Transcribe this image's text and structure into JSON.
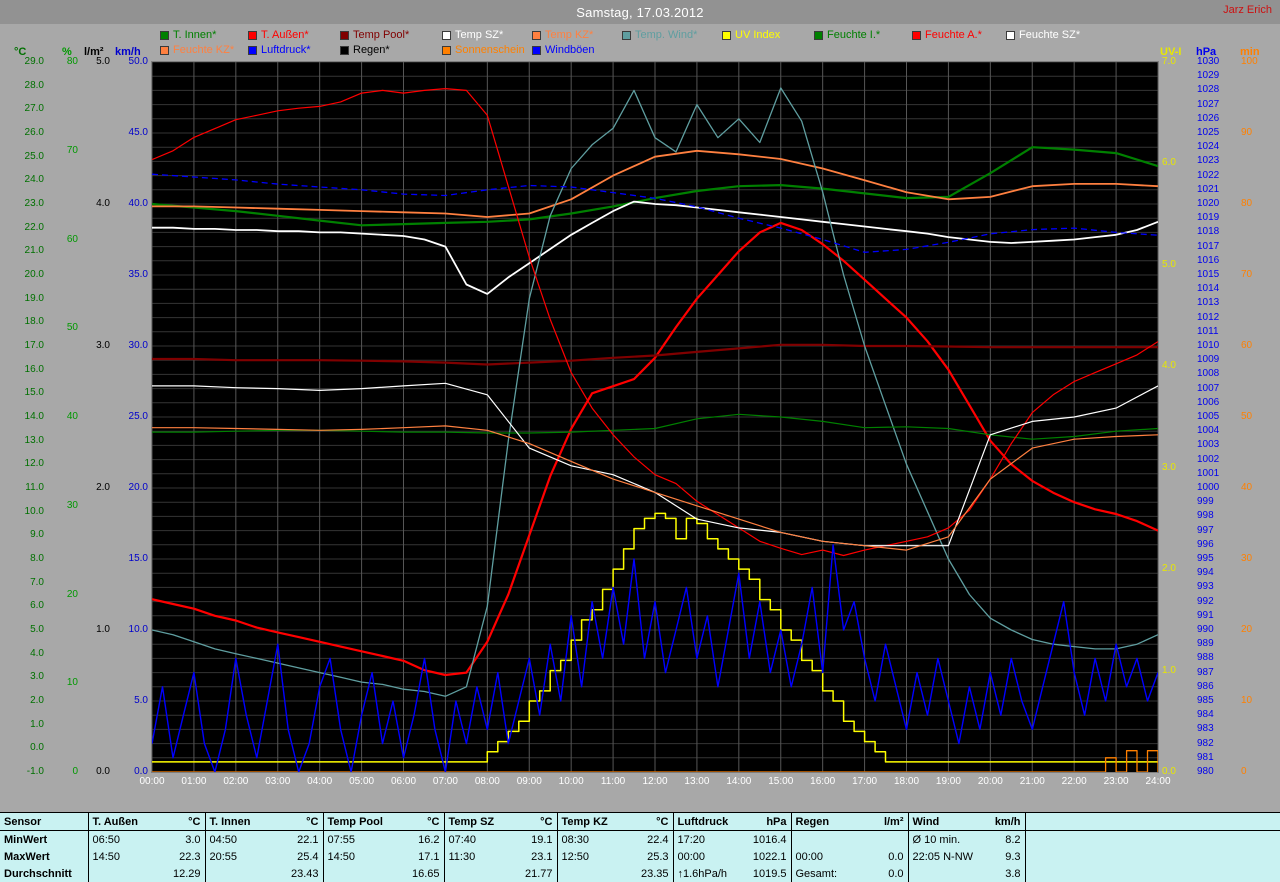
{
  "header": {
    "title": "Samstag, 17.03.2012",
    "user": "Jarz Erich"
  },
  "chart_data": {
    "type": "line",
    "title": "Samstag, 17.03.2012",
    "grid": true,
    "legend_position": "top",
    "x_labels": [
      "00:00",
      "01:00",
      "02:00",
      "03:00",
      "04:00",
      "05:00",
      "06:00",
      "07:00",
      "08:00",
      "09:00",
      "10:00",
      "11:00",
      "12:00",
      "13:00",
      "14:00",
      "15:00",
      "16:00",
      "17:00",
      "18:00",
      "19:00",
      "20:00",
      "21:00",
      "22:00",
      "23:00",
      "24:00"
    ],
    "axes": [
      {
        "id": "temp",
        "unit": "°C",
        "min": -1,
        "max": 29,
        "step": 1,
        "decimals": 1,
        "color": "#007000",
        "side": "left"
      },
      {
        "id": "hum",
        "unit": "%",
        "min": 0,
        "max": 80,
        "step": 10,
        "decimals": 0,
        "color": "#009900",
        "side": "left"
      },
      {
        "id": "rain",
        "unit": "l/m²",
        "min": 0,
        "max": 5,
        "step": 1,
        "decimals": 1,
        "color": "#000000",
        "side": "left"
      },
      {
        "id": "wind",
        "unit": "km/h",
        "min": 0,
        "max": 50,
        "step": 5,
        "decimals": 1,
        "color": "#0000cc",
        "side": "left"
      },
      {
        "id": "uv",
        "unit": "UV-I",
        "min": 0,
        "max": 7,
        "step": 1,
        "decimals": 1,
        "color": "#e8e800",
        "side": "right"
      },
      {
        "id": "pressure",
        "unit": "hPa",
        "min": 980,
        "max": 1030,
        "step": 1,
        "decimals": 0,
        "color": "#0000ee",
        "side": "right"
      },
      {
        "id": "sun",
        "unit": "min",
        "min": 0,
        "max": 100,
        "step": 10,
        "decimals": 0,
        "color": "#ff8000",
        "side": "right"
      }
    ],
    "series": [
      {
        "id": "t_innen",
        "label": "T. Innen*",
        "color": "#008000",
        "axis": "temp",
        "width": 2.2,
        "legend_row": 1,
        "step_min": 60,
        "values": [
          23.0,
          22.85,
          22.7,
          22.5,
          22.3,
          22.1,
          22.15,
          22.2,
          22.25,
          22.35,
          22.6,
          22.9,
          23.25,
          23.55,
          23.75,
          23.8,
          23.65,
          23.45,
          23.25,
          23.3,
          24.3,
          25.4,
          25.3,
          25.15,
          24.6
        ]
      },
      {
        "id": "t_aussen",
        "label": "T. Außen*",
        "color": "#ff0000",
        "axis": "temp",
        "width": 2.2,
        "legend_row": 1,
        "step_min": 30,
        "values": [
          6.3,
          6.1,
          5.9,
          5.6,
          5.4,
          5.1,
          4.9,
          4.7,
          4.5,
          4.3,
          4.1,
          3.9,
          3.7,
          3.3,
          3.1,
          3.2,
          4.5,
          6.5,
          9.0,
          11.5,
          13.5,
          15.0,
          15.3,
          15.6,
          16.5,
          17.8,
          19.0,
          20.0,
          21.0,
          21.8,
          22.2,
          21.9,
          21.3,
          20.6,
          19.8,
          19.0,
          18.2,
          17.2,
          16.0,
          14.5,
          13.0,
          12.0,
          11.3,
          10.8,
          10.4,
          10.1,
          9.9,
          9.6,
          9.2
        ]
      },
      {
        "id": "temp_pool",
        "label": "Temp Pool*",
        "color": "#800000",
        "axis": "temp",
        "width": 2.2,
        "legend_row": 1,
        "step_min": 60,
        "values": [
          16.45,
          16.45,
          16.4,
          16.4,
          16.4,
          16.38,
          16.35,
          16.3,
          16.22,
          16.3,
          16.38,
          16.5,
          16.6,
          16.75,
          16.9,
          17.05,
          17.05,
          17.0,
          17.0,
          16.98,
          16.95,
          16.95,
          16.95,
          16.95,
          16.95
        ]
      },
      {
        "id": "temp_sz",
        "label": "Temp SZ*",
        "color": "#ffffff",
        "axis": "temp",
        "width": 1.8,
        "legend_row": 1,
        "step_min": 30,
        "values": [
          22.0,
          22.0,
          21.95,
          21.95,
          21.9,
          21.9,
          21.85,
          21.85,
          21.8,
          21.8,
          21.75,
          21.7,
          21.65,
          21.5,
          21.2,
          19.6,
          19.2,
          19.9,
          20.5,
          21.1,
          21.7,
          22.2,
          22.7,
          23.1,
          23.0,
          22.95,
          22.85,
          22.75,
          22.65,
          22.55,
          22.45,
          22.35,
          22.25,
          22.15,
          22.05,
          21.95,
          21.85,
          21.75,
          21.6,
          21.5,
          21.4,
          21.35,
          21.4,
          21.45,
          21.5,
          21.6,
          21.7,
          21.9,
          22.25
        ]
      },
      {
        "id": "temp_kz",
        "label": "Temp KZ*",
        "color": "#ff8040",
        "axis": "temp",
        "width": 1.8,
        "legend_row": 1,
        "step_min": 60,
        "values": [
          22.9,
          22.9,
          22.85,
          22.8,
          22.75,
          22.7,
          22.65,
          22.6,
          22.45,
          22.6,
          23.2,
          24.2,
          25.0,
          25.25,
          25.1,
          24.9,
          24.5,
          24.0,
          23.5,
          23.2,
          23.3,
          23.75,
          23.85,
          23.85,
          23.75
        ]
      },
      {
        "id": "temp_wind",
        "label": "Temp. Wind*",
        "color": "#5f9ea0",
        "axis": "temp",
        "width": 1.3,
        "legend_row": 1,
        "step_min": 30,
        "values": [
          5.0,
          4.8,
          4.5,
          4.2,
          4.0,
          3.8,
          3.6,
          3.4,
          3.2,
          3.0,
          2.8,
          2.7,
          2.5,
          2.4,
          2.2,
          2.6,
          6.0,
          13.0,
          19.0,
          22.5,
          24.5,
          25.5,
          26.2,
          27.8,
          25.8,
          25.2,
          27.2,
          25.8,
          26.6,
          25.6,
          27.9,
          26.5,
          23.5,
          20.0,
          17.0,
          14.5,
          12.0,
          10.0,
          8.0,
          6.5,
          5.5,
          5.0,
          4.6,
          4.4,
          4.3,
          4.2,
          4.2,
          4.4,
          4.8
        ]
      },
      {
        "id": "uv",
        "label": "UV Index",
        "color": "#ffff00",
        "axis": "uv",
        "width": 1.5,
        "legend_row": 1,
        "step_min": 15,
        "step": true,
        "values": [
          0.1,
          0.1,
          0.1,
          0.1,
          0.1,
          0.1,
          0.1,
          0.1,
          0.1,
          0.1,
          0.1,
          0.1,
          0.1,
          0.1,
          0.1,
          0.1,
          0.1,
          0.1,
          0.1,
          0.1,
          0.1,
          0.1,
          0.1,
          0.1,
          0.1,
          0.1,
          0.1,
          0.1,
          0.1,
          0.1,
          0.1,
          0.1,
          0.2,
          0.3,
          0.4,
          0.5,
          0.7,
          0.8,
          1.0,
          1.1,
          1.3,
          1.5,
          1.6,
          1.8,
          2.0,
          2.2,
          2.4,
          2.5,
          2.55,
          2.5,
          2.3,
          2.5,
          2.45,
          2.3,
          2.2,
          2.1,
          2.0,
          1.9,
          1.7,
          1.6,
          1.4,
          1.3,
          1.1,
          1.0,
          0.8,
          0.7,
          0.5,
          0.4,
          0.3,
          0.2,
          0.1,
          0.1,
          0.1,
          0.1,
          0.1,
          0.1,
          0.1,
          0.1,
          0.1,
          0.1,
          0.1,
          0.1,
          0.1,
          0.1,
          0.1,
          0.1,
          0.1,
          0.1,
          0.1,
          0.1,
          0.1,
          0.1,
          0.1,
          0.1,
          0.1,
          0.1,
          0.1
        ]
      },
      {
        "id": "feuchte_i",
        "label": "Feuchte I.*",
        "color": "#008000",
        "axis": "hum",
        "width": 1.2,
        "legend_row": 1,
        "step_min": 60,
        "values": [
          38.3,
          38.3,
          38.4,
          38.5,
          38.5,
          38.4,
          38.3,
          38.3,
          38.2,
          38.2,
          38.3,
          38.5,
          38.7,
          39.8,
          40.3,
          40.0,
          39.5,
          38.8,
          38.9,
          38.7,
          38.0,
          37.5,
          37.8,
          38.4,
          38.7
        ]
      },
      {
        "id": "feuchte_a",
        "label": "Feuchte A.*",
        "color": "#ff0000",
        "axis": "hum",
        "width": 1.2,
        "legend_row": 1,
        "step_min": 30,
        "values": [
          69,
          70,
          71.5,
          72.5,
          73.5,
          74,
          74.5,
          74.8,
          75,
          75.5,
          76.5,
          76.8,
          76.5,
          76.8,
          77,
          76.8,
          74,
          66,
          58,
          51,
          45,
          41,
          38,
          35.5,
          33.5,
          32.5,
          30.5,
          29,
          27.5,
          26,
          25.2,
          24.5,
          25,
          24.4,
          25,
          25.5,
          26,
          26.5,
          27.5,
          29.5,
          33,
          37,
          40.5,
          42.5,
          44,
          45,
          46,
          47,
          48.5
        ]
      },
      {
        "id": "feuchte_sz",
        "label": "Feuchte SZ*",
        "color": "#ffffff",
        "axis": "hum",
        "width": 1.2,
        "legend_row": 1,
        "step_min": 60,
        "values": [
          43.5,
          43.5,
          43.3,
          43.2,
          43.0,
          43.2,
          43.5,
          43.8,
          42.5,
          36.5,
          34.5,
          33.5,
          31.5,
          28.5,
          27.5,
          27.0,
          26.0,
          25.5,
          25.5,
          25.5,
          38.0,
          39.5,
          40.0,
          41.0,
          43.5
        ]
      },
      {
        "id": "feuchte_kz",
        "label": "Feuchte KZ*",
        "color": "#ff8040",
        "axis": "hum",
        "width": 1.2,
        "legend_row": 2,
        "step_min": 60,
        "values": [
          38.8,
          38.8,
          38.7,
          38.6,
          38.5,
          38.6,
          38.8,
          39.0,
          38.5,
          37.0,
          35.0,
          33.0,
          31.5,
          30.0,
          28.5,
          27.0,
          26.0,
          25.5,
          25.0,
          26.5,
          33.0,
          36.5,
          37.5,
          37.8,
          38.0
        ]
      },
      {
        "id": "luftdruck",
        "label": "Luftdruck*",
        "color": "#0000ff",
        "axis": "pressure",
        "width": 1.3,
        "legend_row": 2,
        "step_min": 60,
        "dash": "6,4",
        "values": [
          1022.1,
          1021.9,
          1021.7,
          1021.4,
          1021.2,
          1021.0,
          1020.7,
          1020.6,
          1021.0,
          1021.3,
          1021.2,
          1020.8,
          1020.4,
          1019.8,
          1019.0,
          1018.3,
          1017.5,
          1016.6,
          1016.8,
          1017.3,
          1017.9,
          1018.2,
          1018.3,
          1018.0,
          1017.8
        ]
      },
      {
        "id": "regen",
        "label": "Regen*",
        "color": "#000000",
        "axis": "rain",
        "width": 1.2,
        "legend_row": 2,
        "step_min": 60,
        "values": [
          0,
          0,
          0,
          0,
          0,
          0,
          0,
          0,
          0,
          0,
          0,
          0,
          0,
          0,
          0,
          0,
          0,
          0,
          0,
          0,
          0,
          0,
          0,
          0,
          0
        ]
      },
      {
        "id": "sonnenschein",
        "label": "Sonnenschein",
        "color": "#ff8000",
        "axis": "sun",
        "width": 1.3,
        "legend_row": 2,
        "step_min": 15,
        "step": true,
        "values": [
          0,
          0,
          0,
          0,
          0,
          0,
          0,
          0,
          0,
          0,
          0,
          0,
          0,
          0,
          0,
          0,
          0,
          0,
          0,
          0,
          0,
          0,
          0,
          0,
          0,
          0,
          0,
          0,
          0,
          0,
          0,
          0,
          0,
          0,
          0,
          0,
          0,
          0,
          0,
          0,
          0,
          0,
          0,
          0,
          0,
          0,
          0,
          0,
          0,
          0,
          0,
          0,
          0,
          0,
          0,
          0,
          0,
          0,
          0,
          0,
          0,
          0,
          0,
          0,
          0,
          0,
          0,
          0,
          0,
          0,
          0,
          0,
          0,
          0,
          0,
          0,
          0,
          0,
          0,
          0,
          0,
          0,
          0,
          0,
          0,
          0,
          0,
          0,
          0,
          0,
          0,
          2,
          0,
          3,
          0,
          3,
          0
        ]
      },
      {
        "id": "windboeen",
        "label": "Windböen",
        "color": "#0000ff",
        "axis": "wind",
        "width": 1.4,
        "legend_row": 2,
        "step_min": 15,
        "values": [
          2,
          6,
          1,
          4,
          7,
          2,
          0,
          3,
          8,
          4,
          1,
          5,
          9,
          3,
          0,
          2,
          6,
          8,
          3,
          0,
          4,
          7,
          2,
          5,
          1,
          4,
          8,
          3,
          0,
          5,
          2,
          6,
          3,
          7,
          2,
          5,
          8,
          4,
          9,
          5,
          11,
          6,
          12,
          8,
          13,
          9,
          15,
          8,
          12,
          7,
          10,
          13,
          8,
          11,
          6,
          10,
          14,
          8,
          12,
          7,
          10,
          6,
          9,
          13,
          7,
          16,
          10,
          12,
          8,
          5,
          9,
          6,
          3,
          7,
          4,
          8,
          5,
          2,
          6,
          3,
          7,
          4,
          8,
          5,
          3,
          6,
          9,
          12,
          7,
          4,
          8,
          5,
          9,
          6,
          8,
          5,
          7
        ]
      }
    ]
  },
  "table": {
    "corner": "Sensor",
    "row_labels": [
      "MinWert",
      "MaxWert",
      "Durchschnitt"
    ],
    "columns": [
      {
        "name": "T. Außen",
        "unit": "°C",
        "cells": [
          [
            "06:50",
            "3.0"
          ],
          [
            "14:50",
            "22.3"
          ],
          [
            "",
            "12.29"
          ]
        ]
      },
      {
        "name": "T. Innen",
        "unit": "°C",
        "cells": [
          [
            "04:50",
            "22.1"
          ],
          [
            "20:55",
            "25.4"
          ],
          [
            "",
            "23.43"
          ]
        ]
      },
      {
        "name": "Temp Pool",
        "unit": "°C",
        "cells": [
          [
            "07:55",
            "16.2"
          ],
          [
            "14:50",
            "17.1"
          ],
          [
            "",
            "16.65"
          ]
        ]
      },
      {
        "name": "Temp SZ",
        "unit": "°C",
        "cells": [
          [
            "07:40",
            "19.1"
          ],
          [
            "11:30",
            "23.1"
          ],
          [
            "",
            "21.77"
          ]
        ]
      },
      {
        "name": "Temp KZ",
        "unit": "°C",
        "cells": [
          [
            "08:30",
            "22.4"
          ],
          [
            "12:50",
            "25.3"
          ],
          [
            "",
            "23.35"
          ]
        ]
      },
      {
        "name": "Luftdruck",
        "unit": "hPa",
        "cells": [
          [
            "17:20",
            "1016.4"
          ],
          [
            "00:00",
            "1022.1"
          ],
          [
            "↑1.6hPa/h",
            "1019.5"
          ]
        ]
      },
      {
        "name": "Regen",
        "unit": "l/m²",
        "cells": [
          [
            "",
            ""
          ],
          [
            "00:00",
            "0.0"
          ],
          [
            "Gesamt:",
            "0.0"
          ]
        ]
      },
      {
        "name": "Wind",
        "unit": "km/h",
        "cells": [
          [
            "Ø 10 min.",
            "8.2"
          ],
          [
            "22:05 N-NW",
            "9.3"
          ],
          [
            "",
            "3.8"
          ]
        ]
      }
    ]
  }
}
